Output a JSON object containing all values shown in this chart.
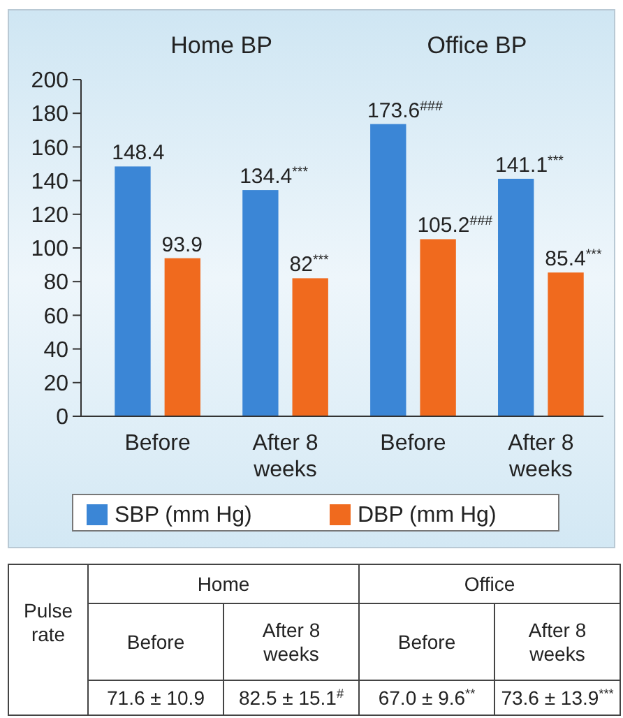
{
  "chart_data": [
    {
      "type": "bar",
      "categories": [
        "Before",
        "After 8 weeks",
        "Before",
        "After 8 weeks"
      ],
      "series": [
        {
          "name": "SBP (mm Hg)",
          "color": "#3b86d6",
          "values": [
            148.4,
            134.4,
            173.6,
            141.1
          ],
          "value_labels": [
            "148.4",
            "134.4$^{***}$",
            "173.6$^{###}$",
            "141.1$^{***}$"
          ]
        },
        {
          "name": "DBP (mm Hg)",
          "color": "#f06a1e",
          "values": [
            93.9,
            82,
            105.2,
            85.4
          ],
          "value_labels": [
            "93.9",
            "82$^{***}$",
            "105.2$^{###}$",
            "85.4$^{***}$"
          ]
        }
      ],
      "annotations": [
        "Home BP",
        "Office BP"
      ],
      "ylim": [
        0,
        200
      ],
      "yticks": [
        0,
        20,
        40,
        60,
        80,
        100,
        120,
        140,
        160,
        180,
        200
      ],
      "legend": "bottom",
      "grid": false
    },
    {
      "type": "other",
      "annotations": [
        "Pulse rate",
        "Home",
        "Office",
        "Before",
        "After 8 weeks",
        "Before",
        "After 8 weeks",
        "71.6 ± 10.9",
        "82.5 ± 15.1$^{#}$",
        "67.0 ± 9.6$^{**}$",
        "73.6 ± 13.9$^{***}$"
      ]
    }
  ]
}
